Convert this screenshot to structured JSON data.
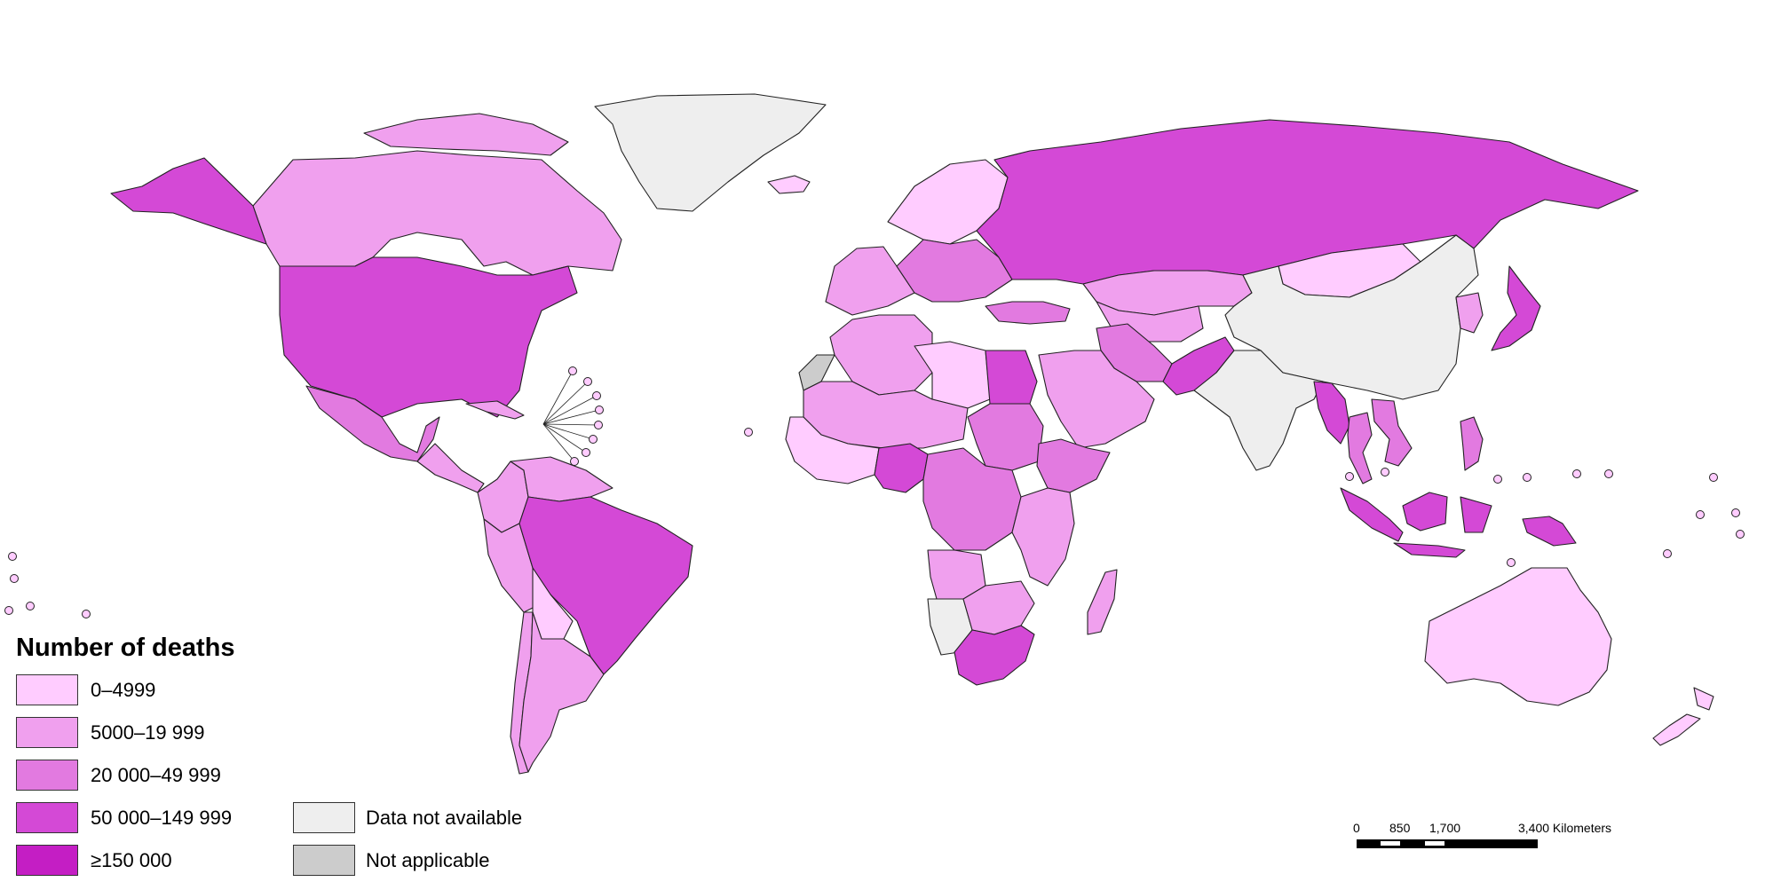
{
  "legend": {
    "title": "Number of deaths",
    "classes": [
      {
        "label": "0–4999",
        "color": "#ffccff"
      },
      {
        "label": "5000–19 999",
        "color": "#f0a0ee"
      },
      {
        "label": "20 000–49 999",
        "color": "#e27ae0"
      },
      {
        "label": "50 000–149 999",
        "color": "#d449d6"
      },
      {
        "label": "≥150 000",
        "color": "#c41ec4"
      }
    ],
    "special": [
      {
        "label": "Data not available",
        "color": "#eeeeee"
      },
      {
        "label": "Not applicable",
        "color": "#cccccc"
      }
    ]
  },
  "scale_bar": {
    "ticks": [
      "0",
      "850",
      "1,700",
      "3,400 Kilometers"
    ]
  },
  "regions": [
    {
      "name": "Canada",
      "class": 1
    },
    {
      "name": "Alaska (United States)",
      "class": 3
    },
    {
      "name": "Canadian Arctic Archipelago",
      "class": 1
    },
    {
      "name": "Greenland",
      "class": "na_data"
    },
    {
      "name": "Iceland",
      "class": 0
    },
    {
      "name": "United States of America",
      "class": 3
    },
    {
      "name": "Mexico",
      "class": 2
    },
    {
      "name": "Central America",
      "class": 1
    },
    {
      "name": "Cuba",
      "class": 1
    },
    {
      "name": "Colombia",
      "class": 1
    },
    {
      "name": "Venezuela",
      "class": 1
    },
    {
      "name": "Brazil",
      "class": 3
    },
    {
      "name": "Peru",
      "class": 1
    },
    {
      "name": "Bolivia",
      "class": 0
    },
    {
      "name": "Chile",
      "class": 1
    },
    {
      "name": "Argentina",
      "class": 1
    },
    {
      "name": "Western Europe",
      "class": 1
    },
    {
      "name": "Central Europe",
      "class": 2
    },
    {
      "name": "Scandinavia",
      "class": 0
    },
    {
      "name": "Russian Federation",
      "class": 3
    },
    {
      "name": "Kazakhstan",
      "class": 1
    },
    {
      "name": "Central Asia",
      "class": 1
    },
    {
      "name": "Mongolia",
      "class": 0
    },
    {
      "name": "China",
      "class": "na_data"
    },
    {
      "name": "India",
      "class": "na_data"
    },
    {
      "name": "Pakistan",
      "class": 3
    },
    {
      "name": "Iran",
      "class": 2
    },
    {
      "name": "Turkey",
      "class": 2
    },
    {
      "name": "Arabian Peninsula",
      "class": 1
    },
    {
      "name": "Morocco and Algeria",
      "class": 1
    },
    {
      "name": "Western Sahara",
      "class": "na_app"
    },
    {
      "name": "Libya",
      "class": 0
    },
    {
      "name": "Egypt",
      "class": 3
    },
    {
      "name": "Sahel",
      "class": 1
    },
    {
      "name": "West Africa",
      "class": 0
    },
    {
      "name": "Nigeria",
      "class": 3
    },
    {
      "name": "Sudan",
      "class": 2
    },
    {
      "name": "Ethiopia",
      "class": 2
    },
    {
      "name": "Central Africa",
      "class": 2
    },
    {
      "name": "East Africa",
      "class": 1
    },
    {
      "name": "Angola",
      "class": 1
    },
    {
      "name": "Namibia",
      "class": "na_data"
    },
    {
      "name": "Southern Africa",
      "class": 1
    },
    {
      "name": "South Africa",
      "class": 3
    },
    {
      "name": "Madagascar",
      "class": 1
    },
    {
      "name": "Myanmar",
      "class": 3
    },
    {
      "name": "Thailand",
      "class": 2
    },
    {
      "name": "Viet Nam",
      "class": 2
    },
    {
      "name": "Japan",
      "class": 3
    },
    {
      "name": "Korea",
      "class": 1
    },
    {
      "name": "Philippines",
      "class": 2
    },
    {
      "name": "Indonesia",
      "class": 3
    },
    {
      "name": "Papua New Guinea",
      "class": 3
    },
    {
      "name": "Australia",
      "class": 0
    },
    {
      "name": "New Zealand",
      "class": 0
    }
  ]
}
